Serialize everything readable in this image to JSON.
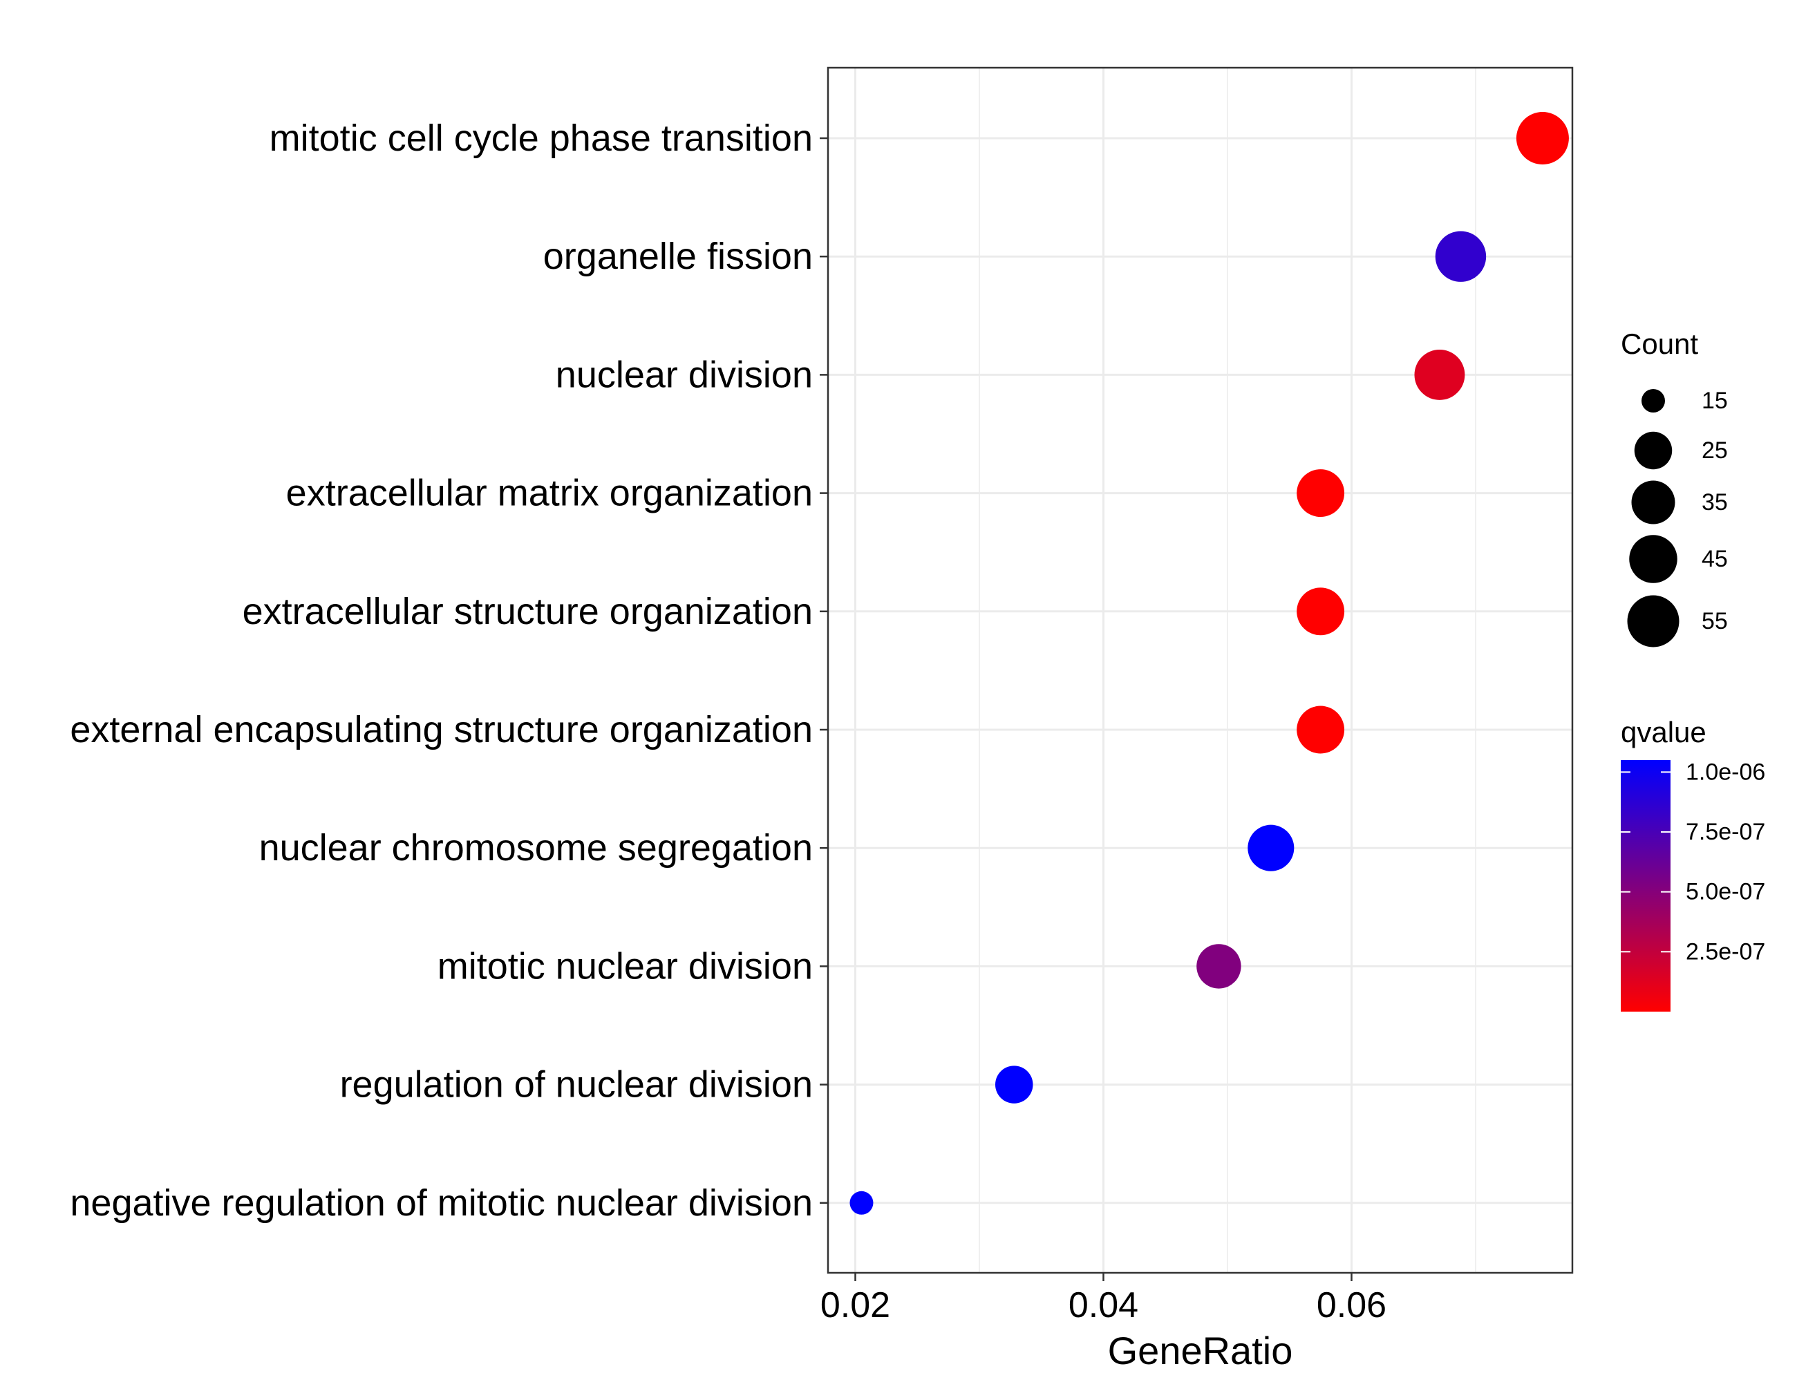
{
  "chart_data": {
    "type": "scatter",
    "xlabel": "GeneRatio",
    "xlim": [
      0.0178,
      0.0778
    ],
    "xticks": [
      0.02,
      0.04,
      0.06
    ],
    "xtick_labels": [
      "0.02",
      "0.04",
      "0.06"
    ],
    "grid": true,
    "points": [
      {
        "term": "mitotic cell cycle phase transition",
        "gene_ratio": 0.0754,
        "count": 57,
        "qvalue": 0.0
      },
      {
        "term": "organelle fission",
        "gene_ratio": 0.0688,
        "count": 52,
        "qvalue": 8.5e-07
      },
      {
        "term": "nuclear division",
        "gene_ratio": 0.0671,
        "count": 51,
        "qvalue": 1.3e-07
      },
      {
        "term": "extracellular matrix organization",
        "gene_ratio": 0.0575,
        "count": 44,
        "qvalue": 0.0
      },
      {
        "term": "extracellular structure organization",
        "gene_ratio": 0.0575,
        "count": 44,
        "qvalue": 0.0
      },
      {
        "term": "external encapsulating structure organization",
        "gene_ratio": 0.0575,
        "count": 44,
        "qvalue": 0.0
      },
      {
        "term": "nuclear chromosome segregation",
        "gene_ratio": 0.0535,
        "count": 41,
        "qvalue": 1.05e-06
      },
      {
        "term": "mitotic nuclear division",
        "gene_ratio": 0.0493,
        "count": 37,
        "qvalue": 5.2e-07
      },
      {
        "term": "regulation of nuclear division",
        "gene_ratio": 0.0328,
        "count": 25,
        "qvalue": 1.05e-06
      },
      {
        "term": "negative regulation of mitotic nuclear division",
        "gene_ratio": 0.0205,
        "count": 15,
        "qvalue": 1.05e-06
      }
    ],
    "legend_size": {
      "title": "Count",
      "placement": "right",
      "entries": [
        {
          "label": "15",
          "value": 15
        },
        {
          "label": "25",
          "value": 25
        },
        {
          "label": "35",
          "value": 35
        },
        {
          "label": "45",
          "value": 45
        },
        {
          "label": "55",
          "value": 55
        }
      ]
    },
    "legend_color": {
      "title": "qvalue",
      "placement": "right",
      "range": [
        0.0,
        1.05e-06
      ],
      "low_color": "#ff0000",
      "high_color": "#0000ff",
      "ticks": [
        {
          "label": "1.0e-06",
          "value": 1e-06
        },
        {
          "label": "7.5e-07",
          "value": 7.5e-07
        },
        {
          "label": "5.0e-07",
          "value": 5e-07
        },
        {
          "label": "2.5e-07",
          "value": 2.5e-07
        }
      ]
    },
    "colors": {
      "grid": "#ebebeb",
      "panel_border": "#333333",
      "background": "#ffffff"
    }
  }
}
